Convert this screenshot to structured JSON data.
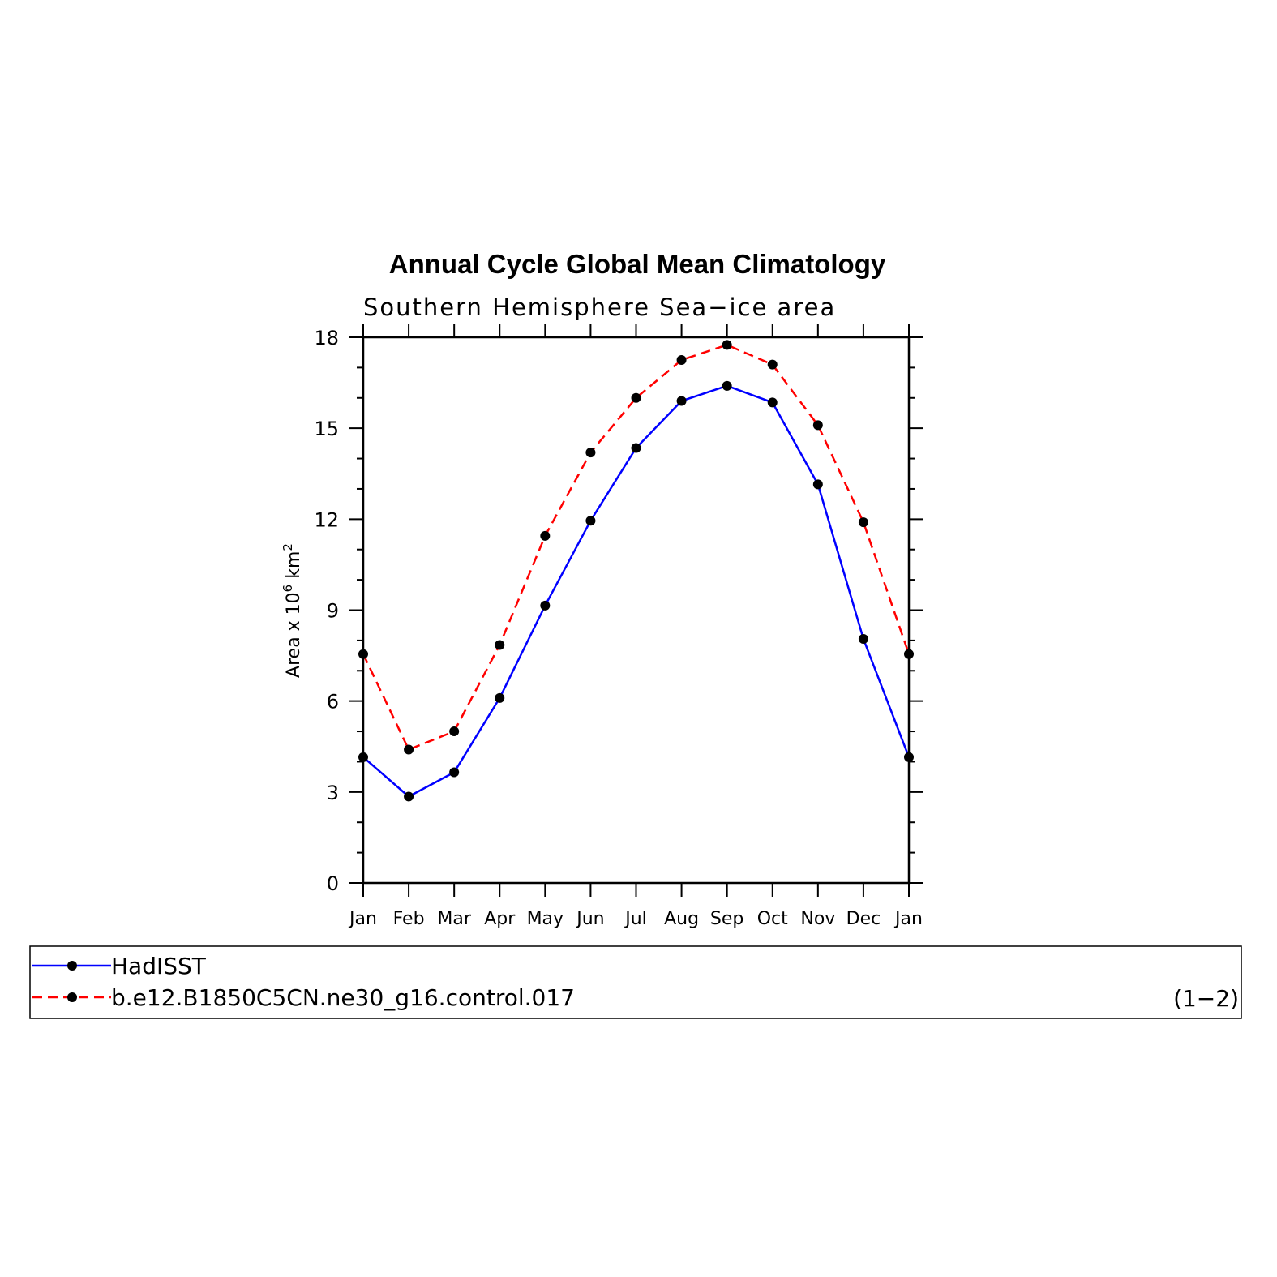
{
  "chart_data": {
    "type": "line",
    "title": "Annual Cycle Global Mean Climatology",
    "subtitle": "Southern Hemisphere Sea−ice area",
    "ylabel": "Area x 10",
    "ylabel_sup": "6",
    "ylabel_unit": " km",
    "ylabel_unit_sup": "2",
    "xlabel": "",
    "categories": [
      "Jan",
      "Feb",
      "Mar",
      "Apr",
      "May",
      "Jun",
      "Jul",
      "Aug",
      "Sep",
      "Oct",
      "Nov",
      "Dec",
      "Jan"
    ],
    "yticks": [
      "0",
      "3",
      "6",
      "9",
      "12",
      "15",
      "18"
    ],
    "ylim": [
      0,
      18
    ],
    "series": [
      {
        "name": "HadISST",
        "color": "#0000ff",
        "dashed": false,
        "values": [
          4.15,
          2.85,
          3.65,
          6.1,
          9.15,
          11.95,
          14.35,
          15.9,
          16.4,
          15.85,
          13.15,
          8.05,
          4.15
        ]
      },
      {
        "name": "b.e12.B1850C5CN.ne30_g16.control.017",
        "color": "#ff0000",
        "dashed": true,
        "values": [
          7.55,
          4.4,
          5.0,
          7.85,
          11.45,
          14.2,
          16.0,
          17.25,
          17.75,
          17.1,
          15.1,
          11.9,
          7.55
        ]
      }
    ],
    "legend_placement": "bottom",
    "legend_note": "(1−2)",
    "grid": false
  }
}
